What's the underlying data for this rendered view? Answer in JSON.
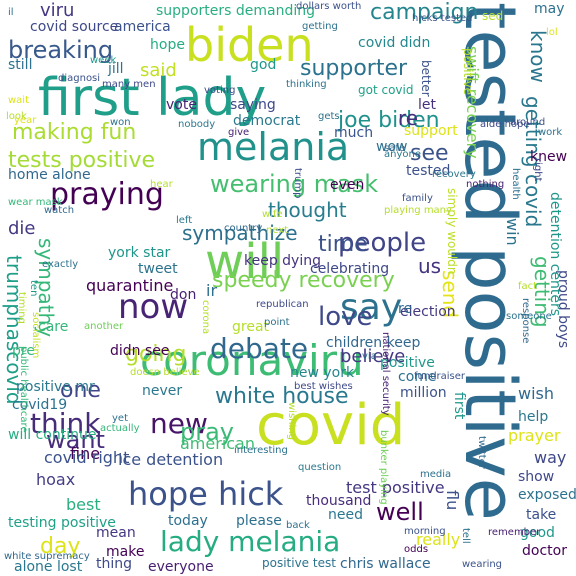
{
  "palette": [
    "#440154",
    "#482878",
    "#3e4989",
    "#31688e",
    "#26828e",
    "#1f9e89",
    "#35b779",
    "#6ece58",
    "#b5de2b",
    "#fde725"
  ],
  "words": [
    {
      "text": "tested positive",
      "color": "#2f6b8e"
    },
    {
      "text": "first lady",
      "color": "#1f9e89"
    },
    {
      "text": "covid",
      "color": "#c8e020"
    },
    {
      "text": "biden",
      "color": "#c8e020"
    },
    {
      "text": "coronaviru",
      "color": "#3dbc74"
    },
    {
      "text": "melania",
      "color": "#21918c"
    },
    {
      "text": "hope hick",
      "color": "#3b528b"
    },
    {
      "text": "will",
      "color": "#6ece58"
    },
    {
      "text": "wearing mask",
      "color": "#45bf6f"
    },
    {
      "text": "say",
      "color": "#2c728e"
    },
    {
      "text": "praying",
      "color": "#440154"
    },
    {
      "text": "lady melania",
      "color": "#25ac82"
    },
    {
      "text": "debate",
      "color": "#31688e"
    },
    {
      "text": "now",
      "color": "#482475"
    },
    {
      "text": "white house",
      "color": "#2a788e"
    },
    {
      "text": "people",
      "color": "#414487"
    },
    {
      "text": "speedy recovery",
      "color": "#7ad151"
    },
    {
      "text": "campaign",
      "color": "#25858e"
    },
    {
      "text": "supporter",
      "color": "#2c728e"
    },
    {
      "text": "breaking",
      "color": "#38598c"
    },
    {
      "text": "making fun",
      "color": "#aadc32"
    },
    {
      "text": "tests positive",
      "color": "#a5db36"
    },
    {
      "text": "joe biden",
      "color": "#20928c"
    },
    {
      "text": "trumphascovid",
      "color": "#1f9e89"
    },
    {
      "text": "sympathy",
      "color": "#35b779"
    },
    {
      "text": "getting covid",
      "color": "#2a788e"
    },
    {
      "text": "love",
      "color": "#3e4989"
    },
    {
      "text": "time",
      "color": "#3b528b"
    },
    {
      "text": "going",
      "color": "#b5de2b"
    },
    {
      "text": "think",
      "color": "#472c7a"
    },
    {
      "text": "thought",
      "color": "#287d8e"
    },
    {
      "text": "sympathize",
      "color": "#2d708e"
    },
    {
      "text": "new",
      "color": "#481467"
    },
    {
      "text": "pray",
      "color": "#3aba76"
    },
    {
      "text": "well",
      "color": "#440154"
    },
    {
      "text": "know",
      "color": "#2a768e"
    },
    {
      "text": "see",
      "color": "#3b528b"
    },
    {
      "text": "viru",
      "color": "#453781"
    },
    {
      "text": "said",
      "color": "#c2df23"
    },
    {
      "text": "want",
      "color": "#472d7b"
    },
    {
      "text": "one",
      "color": "#404588"
    },
    {
      "text": "die",
      "color": "#443983"
    },
    {
      "text": "day",
      "color": "#dde318"
    },
    {
      "text": "believe",
      "color": "#453882"
    },
    {
      "text": "getting",
      "color": "#3fbc73"
    },
    {
      "text": "send",
      "color": "#e5e419"
    },
    {
      "text": "re",
      "color": "#46307e"
    },
    {
      "text": "us",
      "color": "#46337f"
    },
    {
      "text": "ir",
      "color": "#2d708e"
    },
    {
      "text": "supporters demanding",
      "color": "#29af7f"
    },
    {
      "text": "covid didn",
      "color": "#23888e"
    },
    {
      "text": "got covid",
      "color": "#1fa088"
    },
    {
      "text": "vote",
      "color": "#482475"
    },
    {
      "text": "democrat",
      "color": "#2a788e"
    },
    {
      "text": "support",
      "color": "#dde318"
    },
    {
      "text": "much",
      "color": "#39558c"
    },
    {
      "text": "god",
      "color": "#1f988b"
    },
    {
      "text": "hope",
      "color": "#25ab82"
    },
    {
      "text": "america",
      "color": "#3b528b"
    },
    {
      "text": "covid source",
      "color": "#3e4989"
    },
    {
      "text": "still",
      "color": "#2c718e"
    },
    {
      "text": "jill",
      "color": "#2b748e"
    },
    {
      "text": "saying",
      "color": "#3e4989"
    },
    {
      "text": "let",
      "color": "#46307e"
    },
    {
      "text": "home alone",
      "color": "#31688e"
    },
    {
      "text": "york star",
      "color": "#1f968b"
    },
    {
      "text": "tweet",
      "color": "#2c728e"
    },
    {
      "text": "don",
      "color": "#482071"
    },
    {
      "text": "quarantine",
      "color": "#440154"
    },
    {
      "text": "keep dying",
      "color": "#46337f"
    },
    {
      "text": "celebrating",
      "color": "#3e4989"
    },
    {
      "text": "election",
      "color": "#453882"
    },
    {
      "text": "children keep",
      "color": "#31688e"
    },
    {
      "text": "positive",
      "color": "#1f988b"
    },
    {
      "text": "come",
      "color": "#2c718e"
    },
    {
      "text": "million",
      "color": "#3b528b"
    },
    {
      "text": "wish",
      "color": "#31688e"
    },
    {
      "text": "help",
      "color": "#2a788e"
    },
    {
      "text": "way",
      "color": "#3f4788"
    },
    {
      "text": "american",
      "color": "#3fbc73"
    },
    {
      "text": "fine",
      "color": "#440154"
    },
    {
      "text": "covid right",
      "color": "#3b528b"
    },
    {
      "text": "hoax",
      "color": "#433e85"
    },
    {
      "text": "best",
      "color": "#29af7f"
    },
    {
      "text": "ice detention",
      "color": "#3b528b"
    },
    {
      "text": "test positive",
      "color": "#453781"
    },
    {
      "text": "thousand",
      "color": "#472d7b"
    },
    {
      "text": "testing positive",
      "color": "#1fa088"
    },
    {
      "text": "today",
      "color": "#2d708e"
    },
    {
      "text": "mean",
      "color": "#453781"
    },
    {
      "text": "please",
      "color": "#2d708e"
    },
    {
      "text": "need",
      "color": "#2a788e"
    },
    {
      "text": "make",
      "color": "#440154"
    },
    {
      "text": "thing",
      "color": "#3e4989"
    },
    {
      "text": "really",
      "color": "#dde318"
    },
    {
      "text": "chris wallace",
      "color": "#31688e"
    },
    {
      "text": "positive test",
      "color": "#2c728e"
    },
    {
      "text": "alone lost",
      "color": "#2a788e"
    },
    {
      "text": "everyone",
      "color": "#482071"
    },
    {
      "text": "prayer",
      "color": "#dde318"
    },
    {
      "text": "show",
      "color": "#3f4788"
    },
    {
      "text": "exposed",
      "color": "#2c728e"
    },
    {
      "text": "take",
      "color": "#3b528b"
    },
    {
      "text": "good",
      "color": "#1f988b"
    },
    {
      "text": "doctor",
      "color": "#440154"
    },
    {
      "text": "win",
      "color": "#2c728e"
    },
    {
      "text": "first",
      "color": "#1f988b"
    },
    {
      "text": "flu",
      "color": "#3b528b"
    },
    {
      "text": "swift recovery",
      "color": "#7ad151"
    },
    {
      "text": "detention centers",
      "color": "#1f988b"
    },
    {
      "text": "proud boys",
      "color": "#3e4989"
    },
    {
      "text": "knew",
      "color": "#440154"
    },
    {
      "text": "may",
      "color": "#2c728e"
    },
    {
      "text": "better",
      "color": "#3b528b"
    },
    {
      "text": "tested",
      "color": "#3b528b"
    },
    {
      "text": "never",
      "color": "#2a788e"
    },
    {
      "text": "care",
      "color": "#35b779"
    },
    {
      "text": "great",
      "color": "#b5de2b"
    },
    {
      "text": "didn see",
      "color": "#440154"
    },
    {
      "text": "positive mr",
      "color": "#2a788e"
    },
    {
      "text": "covid19",
      "color": "#2c728e"
    },
    {
      "text": "will continue",
      "color": "#26ad81"
    },
    {
      "text": "pre",
      "color": "#35b779"
    },
    {
      "text": "new york",
      "color": "#25858e"
    },
    {
      "text": "re",
      "color": "#31688e"
    },
    {
      "text": "wow",
      "color": "#2c728e"
    },
    {
      "text": "even",
      "color": "#440154"
    },
    {
      "text": "simply wouldn",
      "color": "#bddf26"
    },
    {
      "text": "sed",
      "color": "#b5de2b"
    },
    {
      "text": "positive",
      "color": "#b5de2b"
    },
    {
      "text": "getting",
      "color": "#2c728e"
    },
    {
      "text": "dollars worth",
      "color": "#3b528b"
    },
    {
      "text": "hicks tested",
      "color": "#3b528b"
    },
    {
      "text": "voting",
      "color": "#3e4989"
    },
    {
      "text": "week",
      "color": "#1f988b"
    },
    {
      "text": "diagnosi",
      "color": "#3b528b"
    },
    {
      "text": "many men",
      "color": "#3e4989"
    },
    {
      "text": "thinking",
      "color": "#2c728e"
    },
    {
      "text": "nobody",
      "color": "#2a788e"
    },
    {
      "text": "give",
      "color": "#482071"
    },
    {
      "text": "gets",
      "color": "#2c728e"
    },
    {
      "text": "safe",
      "color": "#31688e"
    },
    {
      "text": "anyone",
      "color": "#2a788e"
    },
    {
      "text": "around",
      "color": "#3b528b"
    },
    {
      "text": "work",
      "color": "#2c728e"
    },
    {
      "text": "recovery",
      "color": "#2a788e"
    },
    {
      "text": "nothing",
      "color": "#482071"
    },
    {
      "text": "health",
      "color": "#2c728e"
    },
    {
      "text": "left",
      "color": "#2a788e"
    },
    {
      "text": "country",
      "color": "#31688e"
    },
    {
      "text": "republican",
      "color": "#3e4989"
    },
    {
      "text": "point",
      "color": "#2c728e"
    },
    {
      "text": "national security",
      "color": "#482071"
    },
    {
      "text": "twitter",
      "color": "#31688e"
    },
    {
      "text": "via",
      "color": "#2c728e"
    },
    {
      "text": "fundraiser",
      "color": "#3b528b"
    },
    {
      "text": "best wishes",
      "color": "#3e4989"
    },
    {
      "text": "yet",
      "color": "#2c728e"
    },
    {
      "text": "interesting",
      "color": "#2c728e"
    },
    {
      "text": "back",
      "color": "#2c728e"
    },
    {
      "text": "question",
      "color": "#2a788e"
    },
    {
      "text": "odds",
      "color": "#440154"
    },
    {
      "text": "morning",
      "color": "#3b528b"
    },
    {
      "text": "tell",
      "color": "#2c728e"
    },
    {
      "text": "remember",
      "color": "#482071"
    },
    {
      "text": "wearing",
      "color": "#3b528b"
    },
    {
      "text": "white supremacy",
      "color": "#31688e"
    },
    {
      "text": "ten",
      "color": "#1f988b"
    },
    {
      "text": "timing",
      "color": "#b5de2b"
    },
    {
      "text": "socialism",
      "color": "#c2df23"
    },
    {
      "text": "public healthcare",
      "color": "#35b779"
    },
    {
      "text": "another",
      "color": "#6ece58"
    },
    {
      "text": "doesn believe",
      "color": "#b5de2b"
    },
    {
      "text": "actually",
      "color": "#35b779"
    },
    {
      "text": "corona",
      "color": "#b5de2b"
    },
    {
      "text": "hear",
      "color": "#b5de2b"
    },
    {
      "text": "wear mask",
      "color": "#35b779"
    },
    {
      "text": "watch",
      "color": "#31688e"
    },
    {
      "text": "exactly",
      "color": "#2c728e"
    },
    {
      "text": "look",
      "color": "#b5de2b"
    },
    {
      "text": "wait",
      "color": "#dde318"
    },
    {
      "text": "year",
      "color": "#dde318"
    },
    {
      "text": "won",
      "color": "#2c728e"
    },
    {
      "text": "fact",
      "color": "#b5de2b"
    },
    {
      "text": "response",
      "color": "#31688e"
    },
    {
      "text": "someone",
      "color": "#2c728e"
    },
    {
      "text": "family",
      "color": "#3b528b"
    },
    {
      "text": "playing many",
      "color": "#b5de2b"
    },
    {
      "text": "media",
      "color": "#2c728e"
    },
    {
      "text": "bunker playing",
      "color": "#6ece58"
    },
    {
      "text": "wishing",
      "color": "#b5de2b"
    },
    {
      "text": "wife",
      "color": "#b5de2b"
    },
    {
      "text": "next",
      "color": "#b5de2b"
    },
    {
      "text": "right",
      "color": "#3e4989"
    },
    {
      "text": "aide hope",
      "color": "#3e4989"
    },
    {
      "text": "lol",
      "color": "#dde318"
    },
    {
      "text": "trump",
      "color": "#3b528b"
    },
    {
      "text": "il",
      "color": "#2c728e"
    }
  ]
}
